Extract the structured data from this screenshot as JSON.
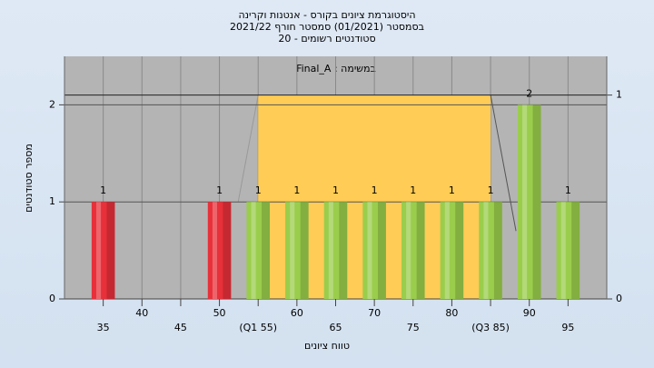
{
  "chart_data": {
    "type": "bar",
    "title": [
      "היסטוגרמת ציונים בקורס - אנטנות וקרינה",
      "בסמסטר (01/2021) סמסטר חורף 2021/22",
      "סטודנטים רשומים - 20"
    ],
    "legend_text": "במשימה : Final_A",
    "x_label": "טווח ציונים",
    "y_label": "מספר סטודנטים",
    "x": [
      35,
      50,
      55,
      60,
      65,
      70,
      75,
      80,
      85,
      90,
      95
    ],
    "values": [
      1,
      1,
      1,
      1,
      1,
      1,
      1,
      1,
      1,
      2,
      1
    ],
    "colors": [
      "#e8303a",
      "#e8303a",
      "#9acd4c",
      "#9acd4c",
      "#9acd4c",
      "#9acd4c",
      "#9acd4c",
      "#9acd4c",
      "#9acd4c",
      "#9acd4c",
      "#9acd4c"
    ],
    "xlim": [
      30,
      100
    ],
    "xticks": [
      35,
      40,
      45,
      50,
      {
        "value": 55,
        "label": "(Q1 55)"
      },
      60,
      65,
      70,
      75,
      80,
      {
        "value": 85,
        "label": "(Q3 85)"
      },
      90,
      95
    ],
    "ylim": [
      0,
      2.5
    ],
    "yticks": [
      0,
      1,
      2
    ],
    "y2lim": [
      0,
      1.19
    ],
    "y2ticks": [
      0,
      1
    ],
    "quartile_box": {
      "x": [
        55,
        85
      ],
      "value": 1,
      "axis": "y2",
      "color": "#ffcc55"
    },
    "grid": true
  }
}
